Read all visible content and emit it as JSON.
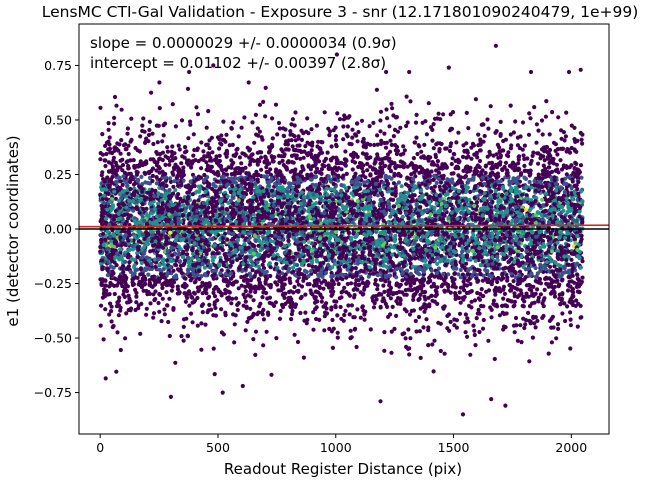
{
  "chart_data": {
    "type": "scatter",
    "title": "LensMC CTI-Gal Validation - Exposure 3 - snr (12.171801090240479, 1e+99)",
    "xlabel": "Readout Register Distance (pix)",
    "ylabel": "e1 (detector coordinates)",
    "xlim": [
      -90,
      2160
    ],
    "ylim": [
      -0.94,
      0.94
    ],
    "xticks": [
      0,
      500,
      1000,
      1500,
      2000
    ],
    "yticks": [
      -0.75,
      -0.5,
      -0.25,
      0.0,
      0.25,
      0.5,
      0.75
    ],
    "xtick_labels": [
      "0",
      "500",
      "1000",
      "1500",
      "2000"
    ],
    "ytick_labels": [
      "−0.75",
      "−0.50",
      "−0.25",
      "0.00",
      "0.25",
      "0.50",
      "0.75"
    ],
    "annotations": {
      "slope": "slope = 0.0000029 +/- 0.0000034 (0.9σ)",
      "intercept": "intercept = 0.01102 +/- 0.00397 (2.8σ)"
    },
    "fit_line": {
      "slope": 2.9e-06,
      "intercept": 0.01102,
      "color": "#d62728"
    },
    "zero_line": {
      "y": 0.0,
      "color": "#000000"
    },
    "x_range_of_points": [
      0,
      2048
    ],
    "point_count_shown": 9000,
    "colormap": "viridis (point density)",
    "grid": false,
    "outliers": [
      {
        "x": 1680,
        "y": 0.84
      },
      {
        "x": 1005,
        "y": 0.8
      },
      {
        "x": 2040,
        "y": 0.73
      },
      {
        "x": 1540,
        "y": -0.85
      },
      {
        "x": 1720,
        "y": -0.81
      },
      {
        "x": 1660,
        "y": -0.78
      },
      {
        "x": 1190,
        "y": -0.79
      },
      {
        "x": 300,
        "y": -0.77
      },
      {
        "x": 520,
        "y": -0.75
      },
      {
        "x": 480,
        "y": 0.75
      },
      {
        "x": 1480,
        "y": 0.74
      },
      {
        "x": 1990,
        "y": 0.72
      }
    ],
    "colors": {
      "low_density": "#440154",
      "mid_density": "#21918c",
      "high_density": "#fde725"
    }
  }
}
